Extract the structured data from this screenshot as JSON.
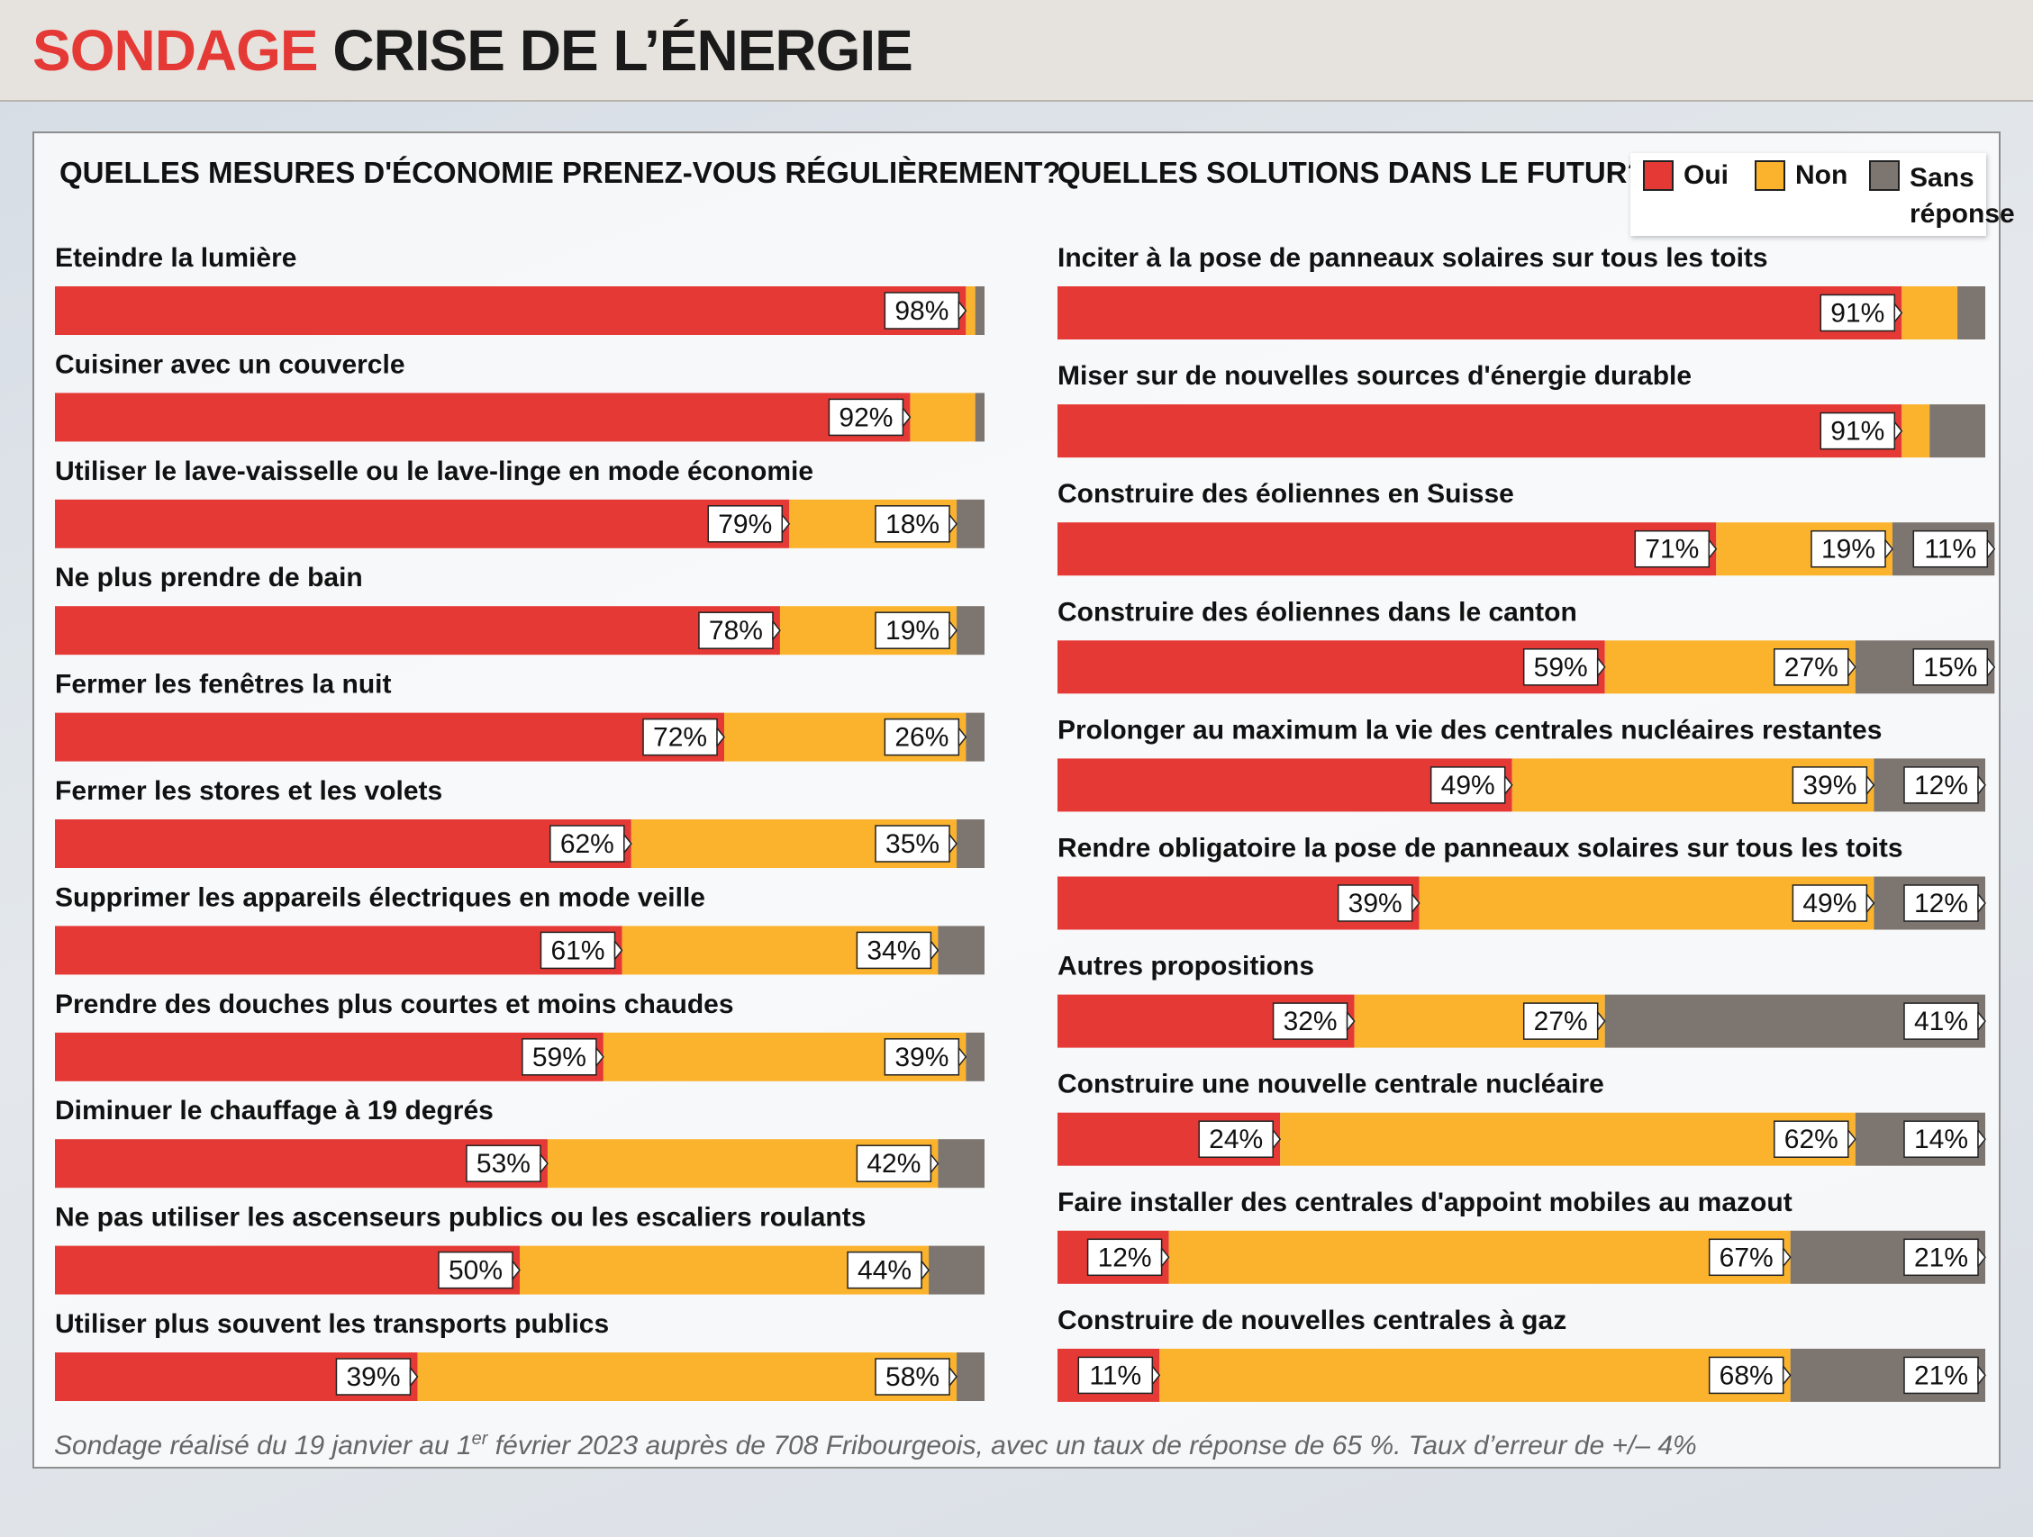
{
  "header": {
    "title_accent": "SONDAGE",
    "title_main": "CRISE DE L’ÉNERGIE"
  },
  "legend": {
    "items": [
      "Oui",
      "Non",
      "Sans réponse"
    ]
  },
  "footnote": "Sondage réalisé du 19 janvier au 1er février 2023 auprès de 708 Fribourgeois, avec un taux de réponse de 65 %. Taux d’erreur de +/– 4%",
  "colors": {
    "oui": "#e53935",
    "non": "#fbb32e",
    "sans_reponse": "#7d7570"
  },
  "chart_data": [
    {
      "type": "bar",
      "orientation": "horizontal",
      "stacked": true,
      "title": "QUELLES MESURES D'ÉCONOMIE PRENEZ-VOUS RÉGULIÈREMENT?",
      "categories": [
        "Eteindre la lumière",
        "Cuisiner avec un couvercle",
        "Utiliser le lave-vaisselle ou le lave-linge en mode économie",
        "Ne plus prendre de bain",
        "Fermer les fenêtres la nuit",
        "Fermer les stores et les volets",
        "Supprimer les appareils électriques en mode veille",
        "Prendre des douches plus courtes et moins chaudes",
        "Diminuer le chauffage à 19 degrés",
        "Ne pas utiliser les ascenseurs publics ou les escaliers roulants",
        "Utiliser plus souvent les transports publics"
      ],
      "series": [
        {
          "name": "Oui",
          "values": [
            98,
            92,
            79,
            78,
            72,
            62,
            61,
            59,
            53,
            50,
            39
          ]
        },
        {
          "name": "Non",
          "values": [
            1,
            7,
            18,
            19,
            26,
            35,
            34,
            39,
            42,
            44,
            58
          ]
        },
        {
          "name": "Sans réponse",
          "values": [
            1,
            1,
            3,
            3,
            2,
            3,
            5,
            2,
            5,
            6,
            3
          ]
        }
      ],
      "data_labels": {
        "Oui": [
          "98%",
          "92%",
          "79%",
          "78%",
          "72%",
          "62%",
          "61%",
          "59%",
          "53%",
          "50%",
          "39%"
        ],
        "Non": [
          null,
          null,
          "18%",
          "19%",
          "26%",
          "35%",
          "34%",
          "39%",
          "42%",
          "44%",
          "58%"
        ],
        "Sans réponse": [
          null,
          null,
          null,
          null,
          null,
          null,
          null,
          null,
          null,
          null,
          null
        ]
      },
      "xlim": [
        0,
        100
      ]
    },
    {
      "type": "bar",
      "orientation": "horizontal",
      "stacked": true,
      "title": "QUELLES SOLUTIONS DANS LE FUTUR?",
      "categories": [
        "Inciter à la pose de panneaux solaires sur tous les toits",
        "Miser sur de nouvelles sources d'énergie durable",
        "Construire des éoliennes en Suisse",
        "Construire des éoliennes dans le canton",
        "Prolonger au maximum la vie des centrales nucléaires restantes",
        "Rendre obligatoire la pose de panneaux solaires sur tous les toits",
        "Autres propositions",
        "Construire une nouvelle centrale nucléaire",
        "Faire installer des centrales d'appoint mobiles au mazout",
        "Construire de nouvelles centrales à gaz"
      ],
      "series": [
        {
          "name": "Oui",
          "values": [
            91,
            91,
            71,
            59,
            49,
            39,
            32,
            24,
            12,
            11
          ]
        },
        {
          "name": "Non",
          "values": [
            6,
            3,
            19,
            27,
            39,
            49,
            27,
            62,
            67,
            68
          ]
        },
        {
          "name": "Sans réponse",
          "values": [
            3,
            6,
            11,
            15,
            12,
            12,
            41,
            14,
            21,
            21
          ]
        }
      ],
      "data_labels": {
        "Oui": [
          "91%",
          "91%",
          "71%",
          "59%",
          "49%",
          "39%",
          "32%",
          "24%",
          "12%",
          "11%"
        ],
        "Non": [
          null,
          null,
          "19%",
          "27%",
          "39%",
          "49%",
          "27%",
          "62%",
          "67%",
          "68%"
        ],
        "Sans réponse": [
          null,
          null,
          "11%",
          "15%",
          "12%",
          "12%",
          "41%",
          "14%",
          "21%",
          "21%"
        ]
      },
      "xlim": [
        0,
        100
      ]
    }
  ]
}
